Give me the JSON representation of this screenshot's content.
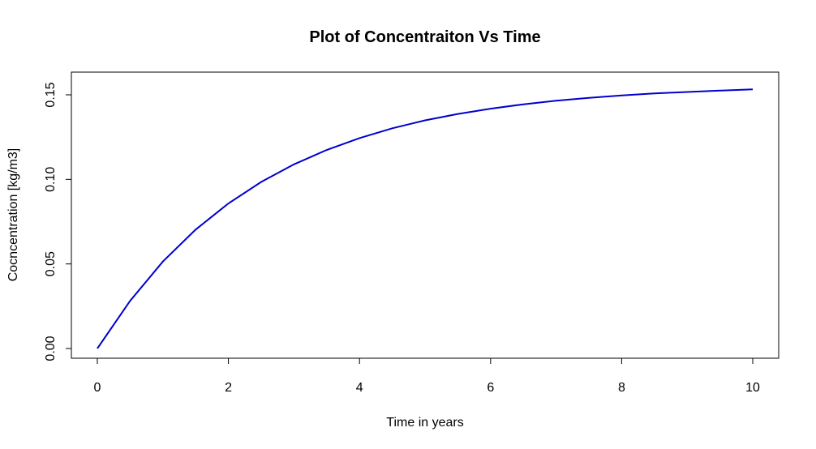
{
  "chart_data": {
    "type": "line",
    "title": "Plot of Concentraiton Vs Time",
    "xlabel": "Time in years",
    "ylabel": "Cocncentration [kg/m3]",
    "xlim": [
      0,
      10
    ],
    "ylim": [
      0,
      0.15
    ],
    "x_ticks": [
      {
        "value": 0,
        "label": "0"
      },
      {
        "value": 2,
        "label": "2"
      },
      {
        "value": 4,
        "label": "4"
      },
      {
        "value": 6,
        "label": "6"
      },
      {
        "value": 8,
        "label": "8"
      },
      {
        "value": 10,
        "label": "10"
      }
    ],
    "y_ticks": [
      {
        "value": 0.0,
        "label": "0.00"
      },
      {
        "value": 0.05,
        "label": "0.05"
      },
      {
        "value": 0.1,
        "label": "0.10"
      },
      {
        "value": 0.15,
        "label": "0.15"
      }
    ],
    "grid": false,
    "series": [
      {
        "color": "#0000cd",
        "x": [
          0,
          0.5,
          1,
          1.5,
          2,
          2.5,
          3,
          3.5,
          4,
          4.5,
          5,
          5.5,
          6,
          6.5,
          7,
          7.5,
          8,
          8.5,
          9,
          9.5,
          10
        ],
        "y": [
          0.0,
          0.0282,
          0.0514,
          0.0703,
          0.0858,
          0.0985,
          0.1089,
          0.1174,
          0.1244,
          0.1302,
          0.1349,
          0.1387,
          0.1418,
          0.1444,
          0.1465,
          0.1482,
          0.1496,
          0.1508,
          0.1517,
          0.1525,
          0.1532
        ]
      }
    ]
  }
}
